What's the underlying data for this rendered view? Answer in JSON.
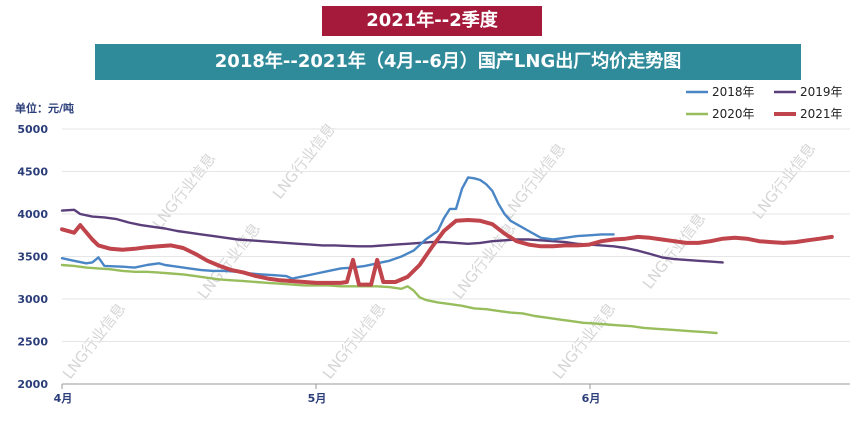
{
  "header": {
    "period_banner": "2021年--2季度",
    "title": "2018年--2021年（4月--6月）国产LNG出厂均价走势图"
  },
  "watermark": "LNG行业信息",
  "chart_data": {
    "type": "line",
    "title": "2018年--2021年（4月--6月）国产LNG出厂均价走势图",
    "ylabel": "单位：元/吨",
    "xlabel": "",
    "ylim": [
      2000,
      5000
    ],
    "yticks": [
      "5000",
      "4500",
      "4000",
      "3500",
      "3000",
      "2500",
      "2000"
    ],
    "x_axis_labels": [
      "4月",
      "5月",
      "6月"
    ],
    "x_label_positions": [
      0,
      30,
      61
    ],
    "x_days": 91,
    "grid": "horizontal",
    "legend_position": "top-right",
    "legend": [
      "2018年",
      "2019年",
      "2020年",
      "2021年"
    ],
    "series": [
      {
        "name": "2018年",
        "color": "#4a86c5",
        "points": [
          [
            0,
            3480
          ],
          [
            2,
            3450
          ],
          [
            4,
            3420
          ],
          [
            5,
            3430
          ],
          [
            6,
            3490
          ],
          [
            7,
            3390
          ],
          [
            10,
            3380
          ],
          [
            12,
            3370
          ],
          [
            14,
            3400
          ],
          [
            16,
            3420
          ],
          [
            17,
            3400
          ],
          [
            19,
            3380
          ],
          [
            21,
            3360
          ],
          [
            23,
            3340
          ],
          [
            25,
            3330
          ],
          [
            27,
            3330
          ],
          [
            29,
            3320
          ],
          [
            31,
            3300
          ],
          [
            33,
            3290
          ],
          [
            35,
            3280
          ],
          [
            37,
            3270
          ],
          [
            38,
            3240
          ],
          [
            40,
            3270
          ],
          [
            42,
            3300
          ],
          [
            44,
            3330
          ],
          [
            46,
            3360
          ],
          [
            48,
            3370
          ],
          [
            50,
            3390
          ],
          [
            52,
            3420
          ],
          [
            54,
            3450
          ],
          [
            56,
            3500
          ],
          [
            58,
            3570
          ],
          [
            60,
            3700
          ],
          [
            62,
            3800
          ],
          [
            63,
            3950
          ],
          [
            64,
            4060
          ],
          [
            65,
            4060
          ],
          [
            66,
            4300
          ],
          [
            67,
            4430
          ],
          [
            68,
            4420
          ],
          [
            69,
            4400
          ],
          [
            70,
            4350
          ],
          [
            71,
            4270
          ],
          [
            72,
            4120
          ],
          [
            73,
            4000
          ],
          [
            74,
            3920
          ],
          [
            75,
            3880
          ],
          [
            77,
            3800
          ],
          [
            79,
            3720
          ],
          [
            81,
            3700
          ],
          [
            83,
            3720
          ],
          [
            85,
            3740
          ],
          [
            87,
            3750
          ],
          [
            89,
            3760
          ],
          [
            91,
            3760
          ]
        ]
      },
      {
        "name": "2019年",
        "color": "#5a3f7a",
        "points": [
          [
            0,
            4040
          ],
          [
            2,
            4050
          ],
          [
            3,
            4000
          ],
          [
            5,
            3970
          ],
          [
            7,
            3960
          ],
          [
            9,
            3940
          ],
          [
            11,
            3900
          ],
          [
            13,
            3870
          ],
          [
            15,
            3850
          ],
          [
            17,
            3830
          ],
          [
            19,
            3800
          ],
          [
            21,
            3780
          ],
          [
            23,
            3760
          ],
          [
            25,
            3740
          ],
          [
            27,
            3720
          ],
          [
            29,
            3700
          ],
          [
            31,
            3690
          ],
          [
            33,
            3680
          ],
          [
            35,
            3670
          ],
          [
            37,
            3660
          ],
          [
            39,
            3650
          ],
          [
            41,
            3640
          ],
          [
            43,
            3630
          ],
          [
            45,
            3630
          ],
          [
            47,
            3625
          ],
          [
            49,
            3620
          ],
          [
            51,
            3620
          ],
          [
            53,
            3630
          ],
          [
            55,
            3640
          ],
          [
            57,
            3650
          ],
          [
            59,
            3660
          ],
          [
            61,
            3670
          ],
          [
            63,
            3670
          ],
          [
            65,
            3660
          ],
          [
            67,
            3650
          ],
          [
            69,
            3660
          ],
          [
            71,
            3680
          ],
          [
            73,
            3690
          ],
          [
            75,
            3700
          ],
          [
            77,
            3700
          ],
          [
            79,
            3690
          ],
          [
            81,
            3680
          ],
          [
            83,
            3670
          ],
          [
            85,
            3650
          ],
          [
            87,
            3640
          ],
          [
            89,
            3630
          ],
          [
            91,
            3620
          ],
          [
            93,
            3600
          ],
          [
            95,
            3570
          ],
          [
            97,
            3530
          ],
          [
            99,
            3490
          ],
          [
            101,
            3470
          ],
          [
            103,
            3460
          ],
          [
            105,
            3450
          ],
          [
            107,
            3440
          ],
          [
            109,
            3430
          ]
        ]
      },
      {
        "name": "2020年",
        "color": "#97bd5c",
        "points": [
          [
            0,
            3400
          ],
          [
            2,
            3390
          ],
          [
            4,
            3370
          ],
          [
            6,
            3360
          ],
          [
            8,
            3350
          ],
          [
            10,
            3330
          ],
          [
            12,
            3320
          ],
          [
            14,
            3320
          ],
          [
            16,
            3310
          ],
          [
            18,
            3300
          ],
          [
            20,
            3290
          ],
          [
            22,
            3270
          ],
          [
            24,
            3250
          ],
          [
            26,
            3230
          ],
          [
            28,
            3220
          ],
          [
            30,
            3210
          ],
          [
            32,
            3200
          ],
          [
            34,
            3190
          ],
          [
            36,
            3180
          ],
          [
            38,
            3170
          ],
          [
            40,
            3160
          ],
          [
            42,
            3160
          ],
          [
            44,
            3160
          ],
          [
            46,
            3150
          ],
          [
            48,
            3150
          ],
          [
            50,
            3150
          ],
          [
            52,
            3150
          ],
          [
            54,
            3140
          ],
          [
            56,
            3120
          ],
          [
            57,
            3150
          ],
          [
            58,
            3100
          ],
          [
            59,
            3020
          ],
          [
            60,
            2990
          ],
          [
            62,
            2960
          ],
          [
            64,
            2940
          ],
          [
            66,
            2920
          ],
          [
            68,
            2890
          ],
          [
            70,
            2880
          ],
          [
            72,
            2860
          ],
          [
            74,
            2840
          ],
          [
            76,
            2830
          ],
          [
            78,
            2800
          ],
          [
            80,
            2780
          ],
          [
            82,
            2760
          ],
          [
            84,
            2740
          ],
          [
            86,
            2720
          ],
          [
            88,
            2710
          ],
          [
            90,
            2700
          ],
          [
            92,
            2690
          ],
          [
            94,
            2680
          ],
          [
            96,
            2660
          ],
          [
            98,
            2650
          ],
          [
            100,
            2640
          ],
          [
            102,
            2630
          ],
          [
            104,
            2620
          ],
          [
            106,
            2610
          ],
          [
            108,
            2600
          ]
        ]
      },
      {
        "name": "2021年",
        "color": "#c0444b",
        "points": [
          [
            0,
            3820
          ],
          [
            2,
            3780
          ],
          [
            3,
            3870
          ],
          [
            5,
            3700
          ],
          [
            6,
            3630
          ],
          [
            8,
            3590
          ],
          [
            10,
            3580
          ],
          [
            12,
            3590
          ],
          [
            14,
            3610
          ],
          [
            16,
            3620
          ],
          [
            18,
            3630
          ],
          [
            20,
            3600
          ],
          [
            22,
            3530
          ],
          [
            24,
            3450
          ],
          [
            26,
            3390
          ],
          [
            28,
            3340
          ],
          [
            30,
            3310
          ],
          [
            32,
            3270
          ],
          [
            34,
            3240
          ],
          [
            36,
            3220
          ],
          [
            38,
            3210
          ],
          [
            40,
            3200
          ],
          [
            42,
            3190
          ],
          [
            44,
            3190
          ],
          [
            46,
            3190
          ],
          [
            47,
            3200
          ],
          [
            48,
            3460
          ],
          [
            49,
            3170
          ],
          [
            51,
            3170
          ],
          [
            52,
            3460
          ],
          [
            53,
            3200
          ],
          [
            55,
            3200
          ],
          [
            57,
            3260
          ],
          [
            59,
            3400
          ],
          [
            61,
            3610
          ],
          [
            63,
            3800
          ],
          [
            65,
            3920
          ],
          [
            67,
            3930
          ],
          [
            69,
            3920
          ],
          [
            71,
            3880
          ],
          [
            73,
            3770
          ],
          [
            75,
            3680
          ],
          [
            77,
            3640
          ],
          [
            79,
            3620
          ],
          [
            81,
            3620
          ],
          [
            83,
            3630
          ],
          [
            85,
            3630
          ],
          [
            87,
            3640
          ],
          [
            89,
            3680
          ],
          [
            91,
            3700
          ],
          [
            93,
            3710
          ],
          [
            95,
            3730
          ],
          [
            97,
            3720
          ],
          [
            99,
            3700
          ],
          [
            101,
            3680
          ],
          [
            103,
            3660
          ],
          [
            105,
            3660
          ],
          [
            107,
            3680
          ],
          [
            109,
            3710
          ],
          [
            111,
            3720
          ],
          [
            113,
            3710
          ],
          [
            115,
            3680
          ],
          [
            117,
            3670
          ],
          [
            119,
            3660
          ],
          [
            121,
            3670
          ],
          [
            123,
            3690
          ],
          [
            125,
            3710
          ],
          [
            127,
            3730
          ]
        ]
      }
    ]
  }
}
